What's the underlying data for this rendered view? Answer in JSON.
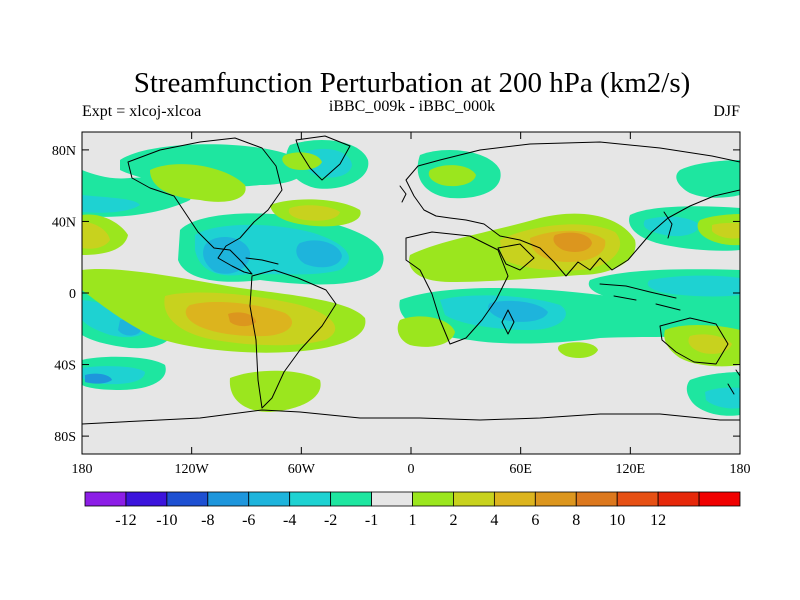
{
  "title": "Streamfunction Perturbation at 200 hPa (km2/s)",
  "left_label": "Expt = xlcoj-xlcoa",
  "center_label": "iBBC_009k - iBBC_000k",
  "right_label": "DJF",
  "map_data": {
    "projection": "cylindrical-equidistant",
    "lon_range": [
      -180,
      180
    ],
    "lat_range": [
      -90,
      90
    ],
    "lat_ticks": [
      {
        "value": 80,
        "label": "80N"
      },
      {
        "value": 40,
        "label": "40N"
      },
      {
        "value": 0,
        "label": "0"
      },
      {
        "value": -40,
        "label": "40S"
      },
      {
        "value": -80,
        "label": "80S"
      }
    ],
    "lon_ticks": [
      {
        "value": -180,
        "label": "180"
      },
      {
        "value": -120,
        "label": "120W"
      },
      {
        "value": -60,
        "label": "60W"
      },
      {
        "value": 0,
        "label": "0"
      },
      {
        "value": 60,
        "label": "60E"
      },
      {
        "value": 120,
        "label": "120E"
      },
      {
        "value": 180,
        "label": "180"
      }
    ],
    "background_color": "#e6e6e6",
    "coastline_color": "#000000"
  },
  "colorbar": {
    "colors": [
      "#8c1ee6",
      "#3c14dc",
      "#1e50d2",
      "#1e96dc",
      "#1eb4dc",
      "#1ed2d2",
      "#1ee6a0",
      "#e6e6e6",
      "#9be61e",
      "#c8d21e",
      "#dcb41e",
      "#dc961e",
      "#dc781e",
      "#e65014",
      "#e6280a",
      "#f00000"
    ],
    "labels": [
      "-12",
      "-10",
      "-8",
      "-6",
      "-4",
      "-2",
      "-1",
      "1",
      "2",
      "4",
      "6",
      "8",
      "10",
      "12"
    ]
  }
}
